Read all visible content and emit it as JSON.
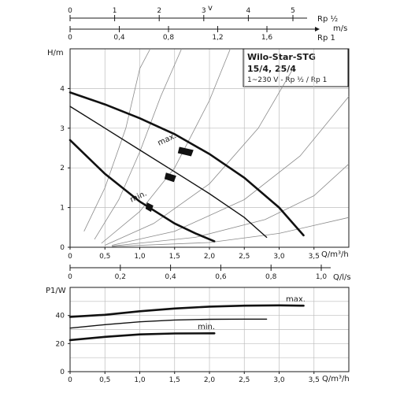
{
  "chart_data": [
    {
      "type": "line",
      "title": "Wilo-Star-STG",
      "info_box": {
        "title": "Wilo-Star-STG",
        "model": "15/4, 25/4",
        "spec": "1~230 V - Rp ½ / Rp 1"
      },
      "ylabel": "H/m",
      "xlabel": "Q/m³/h",
      "xlim": [
        0,
        4.0
      ],
      "ylim": [
        0,
        5
      ],
      "x_ticks": [
        "0",
        "0,5",
        "1,0",
        "1,5",
        "2,0",
        "2,5",
        "3,0",
        "3,5"
      ],
      "y_ticks": [
        "0",
        "1",
        "2",
        "3",
        "4"
      ],
      "grid": true,
      "top_axes": [
        {
          "label": "v",
          "ticks": [
            "0",
            "1",
            "2",
            "3",
            "4",
            "5"
          ],
          "unit_labels": [
            "Rp ½"
          ]
        },
        {
          "label": "m/s",
          "ticks": [
            "0",
            "0,4",
            "0,8",
            "1,2",
            "1,6"
          ],
          "unit_labels": [
            "Rp 1"
          ]
        }
      ],
      "series": [
        {
          "name": "max.",
          "x": [
            0,
            0.5,
            1.0,
            1.5,
            2.0,
            2.5,
            3.0,
            3.35
          ],
          "y": [
            3.9,
            3.6,
            3.25,
            2.85,
            2.35,
            1.75,
            1.0,
            0.3
          ]
        },
        {
          "name": "",
          "x": [
            0,
            0.5,
            1.0,
            1.5,
            2.0,
            2.5,
            2.82
          ],
          "y": [
            3.55,
            3.0,
            2.45,
            1.9,
            1.35,
            0.75,
            0.25
          ]
        },
        {
          "name": "min.",
          "x": [
            0,
            0.5,
            1.0,
            1.5,
            1.8,
            2.07
          ],
          "y": [
            2.7,
            1.85,
            1.15,
            0.6,
            0.35,
            0.15
          ]
        }
      ],
      "system_curves": [
        {
          "x": [
            0.2,
            0.5,
            0.8,
            1.0,
            1.15
          ],
          "y": [
            0.4,
            1.5,
            3.0,
            4.5,
            5.0
          ]
        },
        {
          "x": [
            0.35,
            0.7,
            1.0,
            1.3,
            1.6
          ],
          "y": [
            0.2,
            1.2,
            2.4,
            3.8,
            5.0
          ]
        },
        {
          "x": [
            0.45,
            1.0,
            1.5,
            2.0,
            2.3
          ],
          "y": [
            0.1,
            0.9,
            2.0,
            3.7,
            5.0
          ]
        },
        {
          "x": [
            0.5,
            1.2,
            2.0,
            2.7,
            3.2
          ],
          "y": [
            0.05,
            0.6,
            1.6,
            3.0,
            4.5
          ]
        },
        {
          "x": [
            0.6,
            1.5,
            2.5,
            3.3,
            4.0
          ],
          "y": [
            0.05,
            0.4,
            1.2,
            2.3,
            3.8
          ]
        },
        {
          "x": [
            0.6,
            1.8,
            2.8,
            3.5,
            4.0
          ],
          "y": [
            0.03,
            0.25,
            0.7,
            1.3,
            2.1
          ]
        },
        {
          "x": [
            0.6,
            2.0,
            3.0,
            4.0
          ],
          "y": [
            0.02,
            0.12,
            0.35,
            0.75
          ]
        }
      ],
      "switch_markers": [
        {
          "x": 1.67,
          "y": 2.45
        },
        {
          "x": 1.45,
          "y": 1.8
        },
        {
          "x": 1.15,
          "y": 1.05
        }
      ]
    },
    {
      "type": "line",
      "ylabel": "P1/W",
      "xlabel": "Q/m³/h",
      "xlim": [
        0,
        4.0
      ],
      "ylim": [
        0,
        60
      ],
      "x_ticks": [
        "0",
        "0,5",
        "1,0",
        "1,5",
        "2,0",
        "2,5",
        "3,0",
        "3,5"
      ],
      "y_ticks": [
        "0",
        "20",
        "40"
      ],
      "grid": true,
      "top_axis": {
        "label": "Q/l/s",
        "ticks": [
          "0",
          "0,2",
          "0,4",
          "0,6",
          "0,8",
          "1,0"
        ]
      },
      "series": [
        {
          "name": "max.",
          "x": [
            0,
            0.5,
            1.0,
            1.5,
            2.0,
            2.5,
            3.0,
            3.35
          ],
          "y": [
            39,
            40.5,
            43,
            45,
            46.3,
            47,
            47.2,
            47
          ]
        },
        {
          "name": "",
          "x": [
            0,
            0.5,
            1.0,
            1.5,
            2.0,
            2.5,
            2.82
          ],
          "y": [
            31,
            33.5,
            35.5,
            36.8,
            37.3,
            37.4,
            37.4
          ]
        },
        {
          "name": "min.",
          "x": [
            0,
            0.5,
            1.0,
            1.5,
            2.07
          ],
          "y": [
            22.5,
            24.8,
            26.5,
            27.2,
            27.3
          ]
        }
      ]
    }
  ]
}
